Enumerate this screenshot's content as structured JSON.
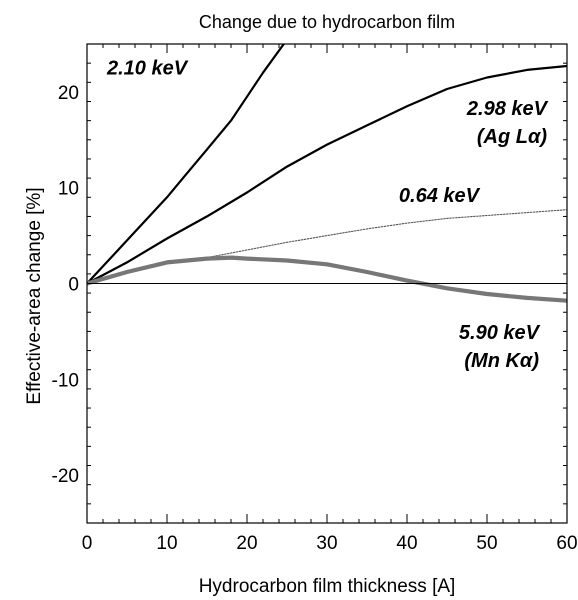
{
  "chart_data": {
    "type": "line",
    "title": "Change due to hydrocarbon film",
    "xlabel": "Hydrocarbon film thickness  [A]",
    "ylabel": "Effective-area change  [%]",
    "xlim": [
      0,
      60
    ],
    "ylim": [
      -25,
      25
    ],
    "x_ticks": [
      0,
      10,
      20,
      30,
      40,
      50,
      60
    ],
    "y_ticks": [
      -20,
      -10,
      0,
      10,
      20
    ],
    "x_tick_labels": [
      "0",
      "10",
      "20",
      "30",
      "40",
      "50",
      "60"
    ],
    "y_tick_labels": [
      "-20",
      "-10",
      "0",
      "10",
      "20"
    ],
    "grid": false,
    "legend": "none (series labeled inline)",
    "series": [
      {
        "name": "2.10 keV",
        "label_lines": [
          "2.10 keV"
        ],
        "style": "solid",
        "color": "#000000",
        "x": [
          0,
          2,
          5,
          8,
          10,
          12,
          15,
          18,
          20,
          22,
          24.6
        ],
        "y": [
          0,
          1.8,
          4.5,
          7.2,
          9.0,
          11.0,
          14.0,
          17.0,
          19.5,
          22.0,
          25.0
        ]
      },
      {
        "name": "2.98 keV",
        "label_lines": [
          "2.98 keV",
          "(Ag Lα)"
        ],
        "style": "solid",
        "color": "#000000",
        "x": [
          0,
          5,
          10,
          15,
          20,
          25,
          30,
          35,
          40,
          45,
          50,
          55,
          60
        ],
        "y": [
          0,
          2.2,
          4.7,
          7.0,
          9.5,
          12.2,
          14.5,
          16.5,
          18.5,
          20.3,
          21.5,
          22.3,
          22.7
        ]
      },
      {
        "name": "0.64 keV",
        "label_lines": [
          "0.64 keV"
        ],
        "style": "dotted",
        "color": "#555555",
        "x": [
          0,
          5,
          10,
          15,
          20,
          25,
          30,
          35,
          40,
          45,
          50,
          55,
          60
        ],
        "y": [
          0,
          1.2,
          2.2,
          2.7,
          3.5,
          4.3,
          5.0,
          5.7,
          6.3,
          6.8,
          7.1,
          7.4,
          7.7
        ]
      },
      {
        "name": "5.90 keV",
        "label_lines": [
          "5.90 keV",
          "(Mn Kα)"
        ],
        "style": "thick",
        "color": "#777777",
        "x": [
          0,
          5,
          10,
          15,
          18,
          20,
          25,
          30,
          35,
          40,
          45,
          50,
          55,
          60
        ],
        "y": [
          0,
          1.2,
          2.2,
          2.6,
          2.7,
          2.6,
          2.4,
          2.0,
          1.2,
          0.3,
          -0.5,
          -1.1,
          -1.5,
          -1.8
        ]
      }
    ],
    "reference_line": {
      "y": 0
    }
  }
}
